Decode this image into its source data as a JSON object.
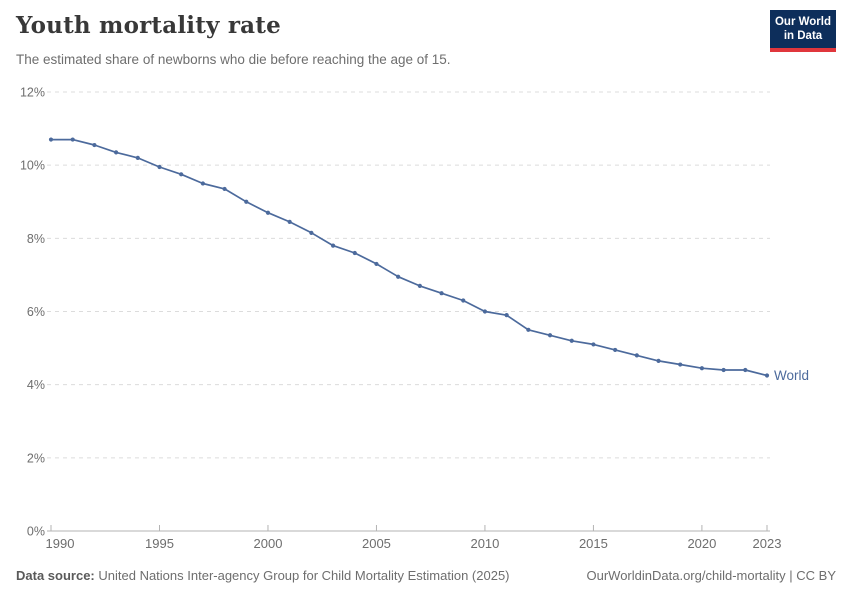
{
  "header": {
    "title": "Youth mortality rate",
    "subtitle": "The estimated share of newborns who die before reaching the age of 15.",
    "logo": {
      "line1": "Our World",
      "line2": "in Data"
    }
  },
  "chart_data": {
    "type": "line",
    "title": "Youth mortality rate",
    "subtitle": "The estimated share of newborns who die before reaching the age of 15.",
    "xlabel": "",
    "ylabel": "",
    "x_range": [
      1990,
      2023
    ],
    "ylim": [
      0,
      12
    ],
    "yticks": [
      0,
      2,
      4,
      6,
      8,
      10,
      12
    ],
    "ytick_suffix": "%",
    "xticks": [
      1990,
      1995,
      2000,
      2005,
      2010,
      2015,
      2020,
      2023
    ],
    "grid": "horizontal-dashed",
    "legend_position": "end-of-line-label",
    "series": [
      {
        "name": "World",
        "x": [
          1990,
          1991,
          1992,
          1993,
          1994,
          1995,
          1996,
          1997,
          1998,
          1999,
          2000,
          2001,
          2002,
          2003,
          2004,
          2005,
          2006,
          2007,
          2008,
          2009,
          2010,
          2011,
          2012,
          2013,
          2014,
          2015,
          2016,
          2017,
          2018,
          2019,
          2020,
          2021,
          2022,
          2023
        ],
        "values": [
          10.7,
          10.7,
          10.55,
          10.35,
          10.2,
          9.95,
          9.75,
          9.5,
          9.35,
          9.0,
          8.7,
          8.45,
          8.15,
          7.8,
          7.6,
          7.3,
          6.95,
          6.7,
          6.5,
          6.3,
          6.0,
          5.9,
          5.5,
          5.35,
          5.2,
          5.1,
          4.95,
          4.8,
          4.65,
          4.55,
          4.45,
          4.4,
          4.4,
          4.25
        ]
      }
    ]
  },
  "colors": {
    "line": "#4c6a9c",
    "series_label": "#4c6a9c",
    "grid": "#dcdcdc",
    "axis": "#b3b3b3",
    "tick_label": "#6e6e6e",
    "logo_bg": "#0d2e5b",
    "logo_stripe": "#e0363c"
  },
  "footer": {
    "source_label": "Data source:",
    "source_text": "United Nations Inter-agency Group for Child Mortality Estimation (2025)",
    "link_text": "OurWorldinData.org/child-mortality | CC BY"
  }
}
